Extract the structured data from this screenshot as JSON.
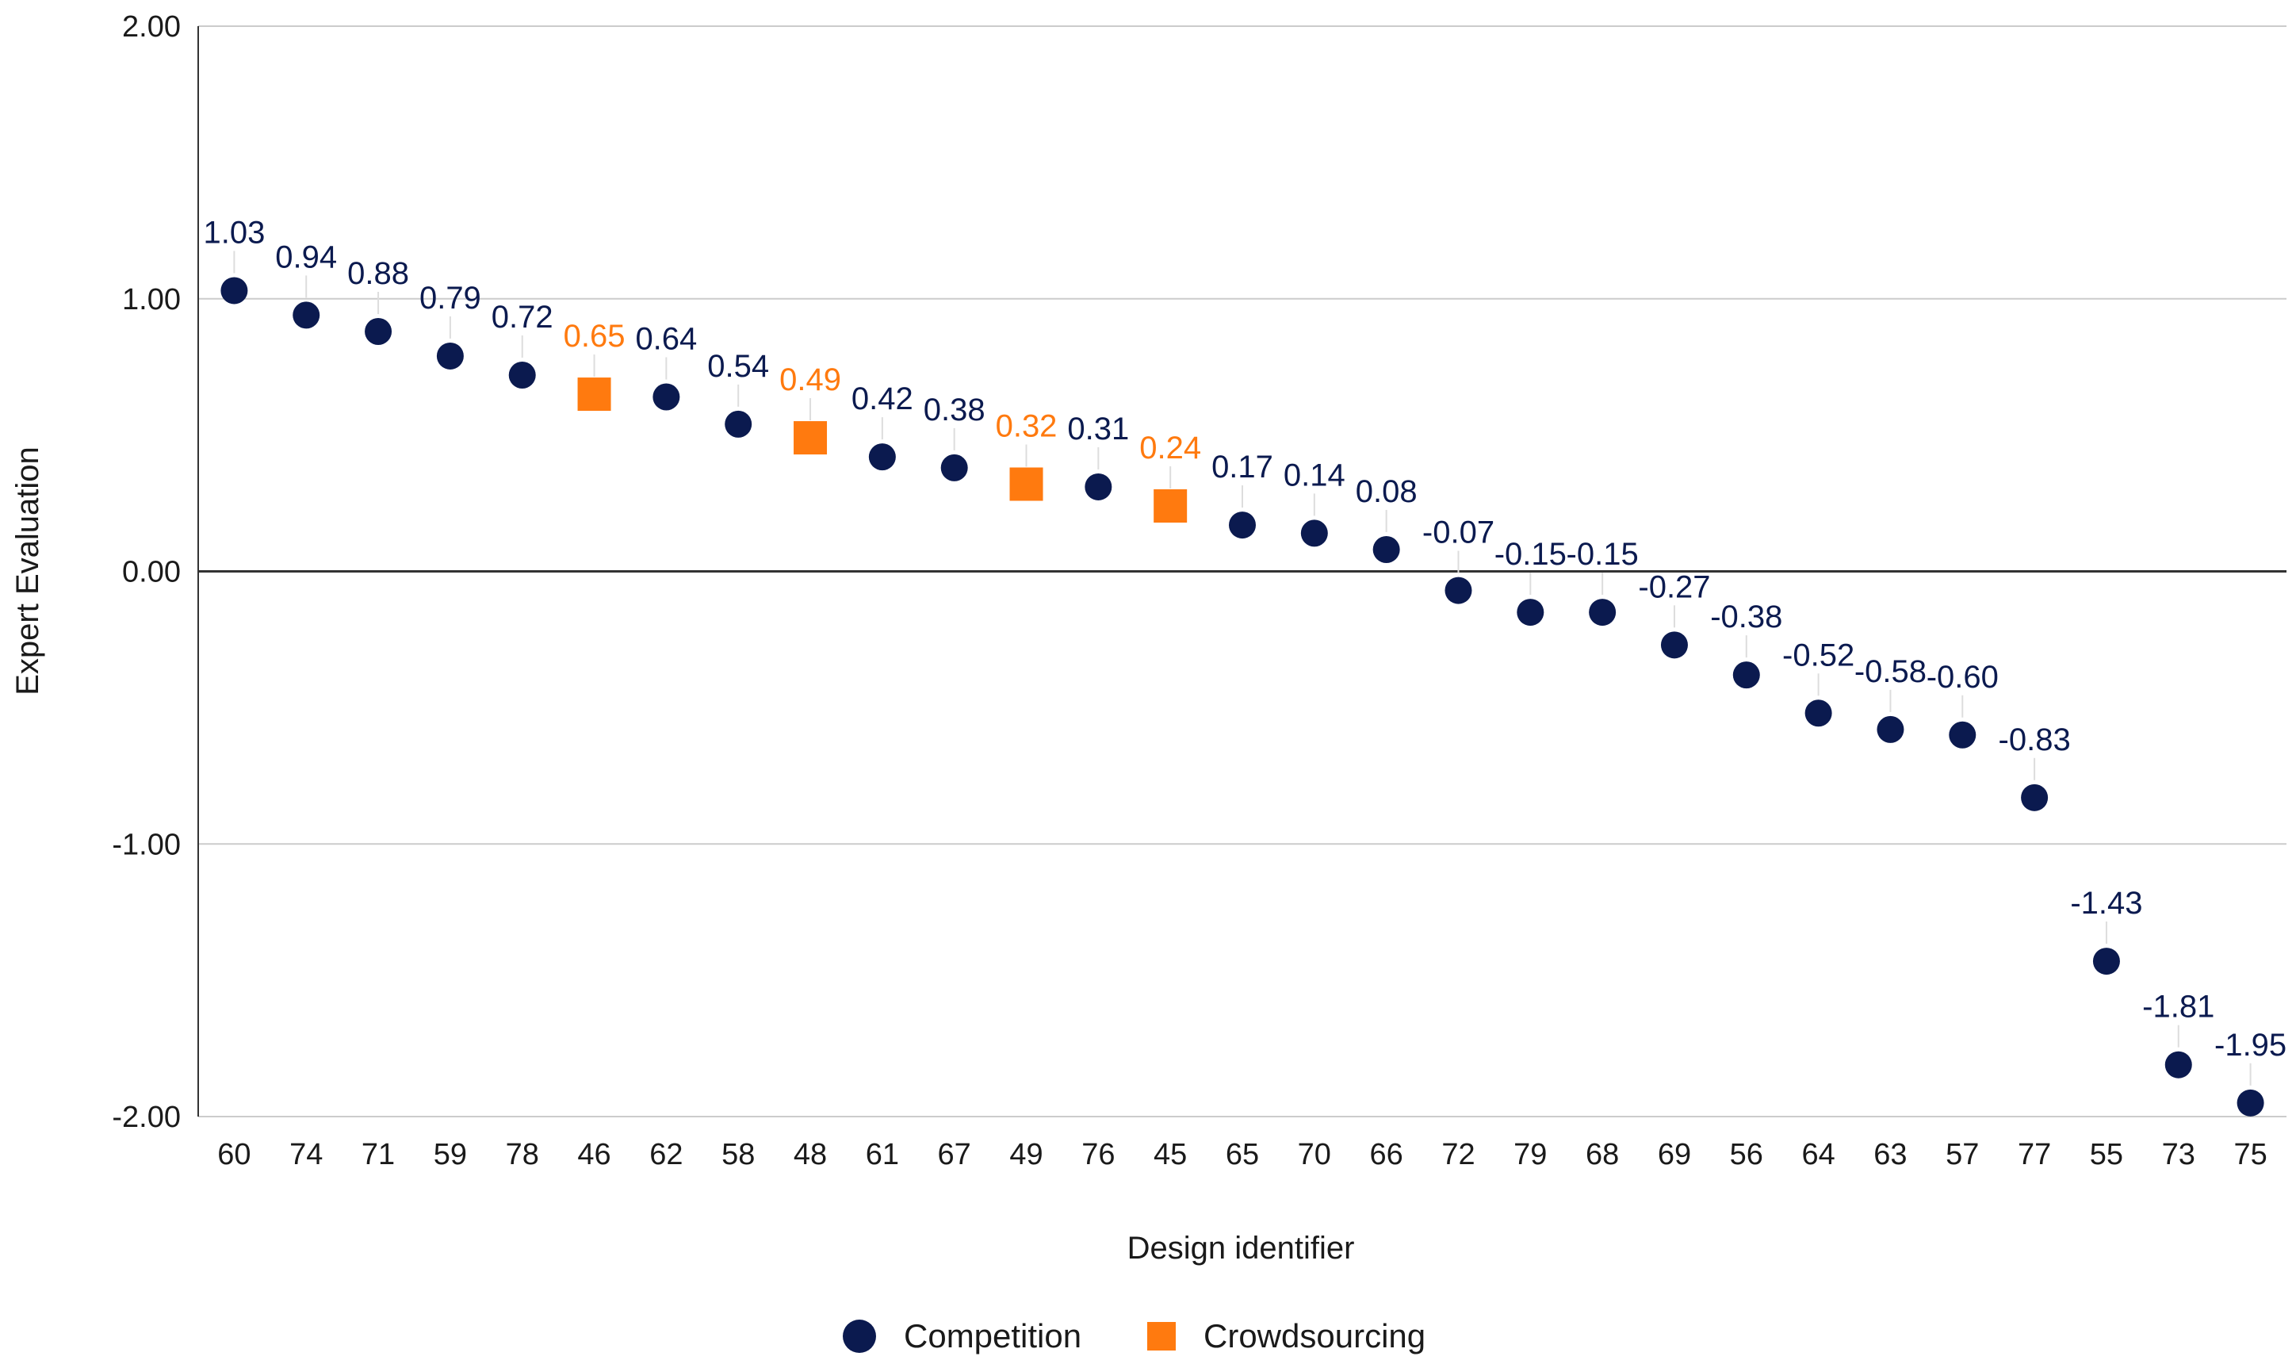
{
  "chart_data": {
    "type": "scatter",
    "title": "",
    "xlabel": "Design identifier",
    "ylabel": "Expert Evaluation",
    "ylim": [
      -2.0,
      2.0
    ],
    "yticks": [
      "2.00",
      "1.00",
      "0.00",
      "-1.00",
      "-2.00"
    ],
    "ytick_values": [
      2,
      1,
      0,
      -1,
      -2
    ],
    "grid": true,
    "legend_position": "bottom-center",
    "categories": [
      "60",
      "74",
      "71",
      "59",
      "78",
      "46",
      "62",
      "58",
      "48",
      "61",
      "67",
      "49",
      "76",
      "45",
      "65",
      "70",
      "66",
      "72",
      "79",
      "68",
      "69",
      "56",
      "64",
      "63",
      "57",
      "77",
      "55",
      "73",
      "75"
    ],
    "values": [
      1.03,
      0.94,
      0.88,
      0.79,
      0.72,
      0.65,
      0.64,
      0.54,
      0.49,
      0.42,
      0.38,
      0.32,
      0.31,
      0.24,
      0.17,
      0.14,
      0.08,
      -0.07,
      -0.15,
      -0.15,
      -0.27,
      -0.38,
      -0.52,
      -0.58,
      -0.6,
      -0.83,
      -1.43,
      -1.81,
      -1.95
    ],
    "value_labels": [
      "1.03",
      "0.94",
      "0.88",
      "0.79",
      "0.72",
      "0.65",
      "0.64",
      "0.54",
      "0.49",
      "0.42",
      "0.38",
      "0.32",
      "0.31",
      "0.24",
      "0.17",
      "0.14",
      "0.08",
      "-0.07",
      "-0.15",
      "-0.15",
      "-0.27",
      "-0.38",
      "-0.52",
      "-0.58",
      "-0.60",
      "-0.83",
      "-1.43",
      "-1.81",
      "-1.95"
    ],
    "groups": [
      "Competition",
      "Competition",
      "Competition",
      "Competition",
      "Competition",
      "Crowdsourcing",
      "Competition",
      "Competition",
      "Crowdsourcing",
      "Competition",
      "Competition",
      "Crowdsourcing",
      "Competition",
      "Crowdsourcing",
      "Competition",
      "Competition",
      "Competition",
      "Competition",
      "Competition",
      "Competition",
      "Competition",
      "Competition",
      "Competition",
      "Competition",
      "Competition",
      "Competition",
      "Competition",
      "Competition",
      "Competition"
    ],
    "series": [
      {
        "name": "Competition",
        "marker": "circle",
        "color": "#0b1a4f"
      },
      {
        "name": "Crowdsourcing",
        "marker": "square",
        "color": "#ff7a0f"
      }
    ]
  }
}
